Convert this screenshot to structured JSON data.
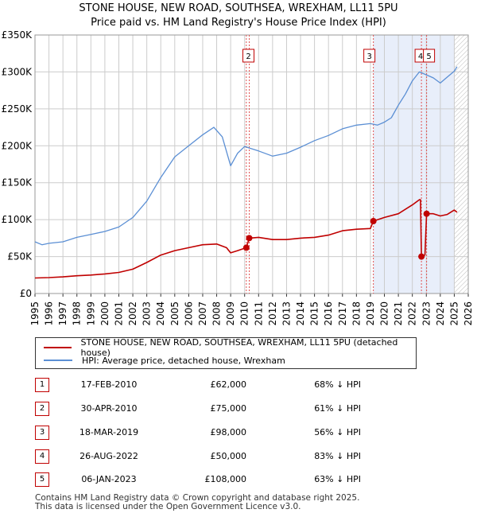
{
  "title_line1": "STONE HOUSE, NEW ROAD, SOUTHSEA, WREXHAM, LL11 5PU",
  "title_line2": "Price paid vs. HM Land Registry's House Price Index (HPI)",
  "colors": {
    "property": "#c00000",
    "hpi": "#5b8fd4",
    "shade": "#e8eefa",
    "grid": "#cccccc",
    "marker_line": "#e05050"
  },
  "chart_data": {
    "type": "line",
    "x_range": [
      1995,
      2026
    ],
    "ylim": [
      0,
      350000
    ],
    "y_ticks": [
      0,
      50000,
      100000,
      150000,
      200000,
      250000,
      300000,
      350000
    ],
    "y_tick_labels": [
      "£0",
      "£50K",
      "£100K",
      "£150K",
      "£200K",
      "£250K",
      "£300K",
      "£350K"
    ],
    "x_ticks": [
      1995,
      1996,
      1997,
      1998,
      1999,
      2000,
      2001,
      2002,
      2003,
      2004,
      2005,
      2006,
      2007,
      2008,
      2009,
      2010,
      2011,
      2012,
      2013,
      2014,
      2015,
      2016,
      2017,
      2018,
      2019,
      2020,
      2021,
      2022,
      2023,
      2024,
      2025,
      2026
    ],
    "shaded_period": [
      2019.21,
      2025.0
    ],
    "future_hatch_from": 2025.0,
    "series": [
      {
        "name": "STONE HOUSE, NEW ROAD, SOUTHSEA, WREXHAM, LL11 5PU (detached house)",
        "points": [
          [
            1995.0,
            21000
          ],
          [
            1996.0,
            21500
          ],
          [
            1997.0,
            22500
          ],
          [
            1998.0,
            24000
          ],
          [
            1999.0,
            25000
          ],
          [
            2000.0,
            26500
          ],
          [
            2001.0,
            28500
          ],
          [
            2002.0,
            33000
          ],
          [
            2003.0,
            42000
          ],
          [
            2004.0,
            52000
          ],
          [
            2005.0,
            58000
          ],
          [
            2006.0,
            62000
          ],
          [
            2007.0,
            66000
          ],
          [
            2008.0,
            67000
          ],
          [
            2008.7,
            62000
          ],
          [
            2009.0,
            55000
          ],
          [
            2009.5,
            58000
          ],
          [
            2010.12,
            62000
          ],
          [
            2010.33,
            75000
          ],
          [
            2011.0,
            76000
          ],
          [
            2012.0,
            73000
          ],
          [
            2013.0,
            73000
          ],
          [
            2014.0,
            75000
          ],
          [
            2015.0,
            76000
          ],
          [
            2016.0,
            79000
          ],
          [
            2017.0,
            85000
          ],
          [
            2018.0,
            87000
          ],
          [
            2019.0,
            88000
          ],
          [
            2019.21,
            98000
          ],
          [
            2020.0,
            103000
          ],
          [
            2021.0,
            108000
          ],
          [
            2022.0,
            120000
          ],
          [
            2022.5,
            127000
          ],
          [
            2022.58,
            127000
          ],
          [
            2022.65,
            50000
          ],
          [
            2022.9,
            52000
          ],
          [
            2023.02,
            108000
          ],
          [
            2023.5,
            108000
          ],
          [
            2024.0,
            105000
          ],
          [
            2024.5,
            107000
          ],
          [
            2025.0,
            113000
          ],
          [
            2025.2,
            110000
          ]
        ]
      },
      {
        "name": "HPI: Average price, detached house, Wrexham",
        "points": [
          [
            1995.0,
            70000
          ],
          [
            1995.5,
            66000
          ],
          [
            1996.0,
            68000
          ],
          [
            1997.0,
            70000
          ],
          [
            1998.0,
            76000
          ],
          [
            1999.0,
            80000
          ],
          [
            2000.0,
            84000
          ],
          [
            2001.0,
            90000
          ],
          [
            2002.0,
            103000
          ],
          [
            2003.0,
            125000
          ],
          [
            2004.0,
            157000
          ],
          [
            2005.0,
            185000
          ],
          [
            2006.0,
            200000
          ],
          [
            2007.0,
            215000
          ],
          [
            2007.8,
            225000
          ],
          [
            2008.4,
            212000
          ],
          [
            2009.0,
            173000
          ],
          [
            2009.5,
            190000
          ],
          [
            2010.0,
            199000
          ],
          [
            2011.0,
            193000
          ],
          [
            2012.0,
            186000
          ],
          [
            2013.0,
            190000
          ],
          [
            2014.0,
            198000
          ],
          [
            2015.0,
            207000
          ],
          [
            2016.0,
            214000
          ],
          [
            2017.0,
            223000
          ],
          [
            2018.0,
            228000
          ],
          [
            2019.0,
            230000
          ],
          [
            2019.5,
            228000
          ],
          [
            2020.0,
            232000
          ],
          [
            2020.5,
            238000
          ],
          [
            2021.0,
            255000
          ],
          [
            2021.5,
            270000
          ],
          [
            2022.0,
            288000
          ],
          [
            2022.5,
            300000
          ],
          [
            2023.0,
            296000
          ],
          [
            2023.5,
            292000
          ],
          [
            2024.0,
            285000
          ],
          [
            2024.5,
            293000
          ],
          [
            2025.0,
            301000
          ],
          [
            2025.2,
            307000
          ]
        ]
      }
    ],
    "annotations": [
      {
        "label": "1",
        "x": 2010.12,
        "y": 62000
      },
      {
        "label": "2",
        "x": 2010.33,
        "y": 75000
      },
      {
        "label": "3",
        "x": 2019.21,
        "y": 98000
      },
      {
        "label": "4",
        "x": 2022.65,
        "y": 50000
      },
      {
        "label": "5",
        "x": 2023.02,
        "y": 108000
      }
    ]
  },
  "legend": {
    "property_label": "STONE HOUSE, NEW ROAD, SOUTHSEA, WREXHAM, LL11 5PU (detached house)",
    "hpi_label": "HPI: Average price, detached house, Wrexham"
  },
  "transactions": [
    {
      "num": "1",
      "date": "17-FEB-2010",
      "price": "£62,000",
      "hpi": "68% ↓ HPI"
    },
    {
      "num": "2",
      "date": "30-APR-2010",
      "price": "£75,000",
      "hpi": "61% ↓ HPI"
    },
    {
      "num": "3",
      "date": "18-MAR-2019",
      "price": "£98,000",
      "hpi": "56% ↓ HPI"
    },
    {
      "num": "4",
      "date": "26-AUG-2022",
      "price": "£50,000",
      "hpi": "83% ↓ HPI"
    },
    {
      "num": "5",
      "date": "06-JAN-2023",
      "price": "£108,000",
      "hpi": "63% ↓ HPI"
    }
  ],
  "footer": {
    "line1": "Contains HM Land Registry data © Crown copyright and database right 2025.",
    "line2": "This data is licensed under the Open Government Licence v3.0."
  }
}
